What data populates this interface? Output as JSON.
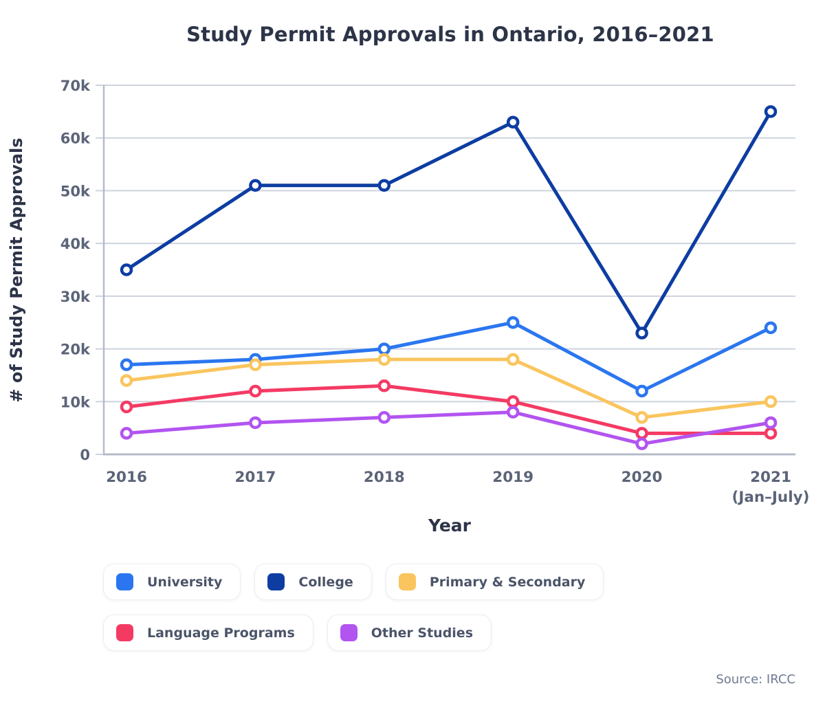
{
  "page": {
    "title": "Study Permit Approvals in Ontario, 2016–2021",
    "source": "Source: IRCC"
  },
  "chart_data": {
    "type": "line",
    "title": "Study Permit Approvals in Ontario, 2016–2021",
    "xlabel": "Year",
    "ylabel": "# of Study Permit Approvals",
    "categories": [
      "2016",
      "2017",
      "2018",
      "2019",
      "2020",
      "2021"
    ],
    "x_note": {
      "category_index": 5,
      "label": "(Jan–July)"
    },
    "ylim": [
      0,
      70000
    ],
    "ytick_step": 10000,
    "ytick_labels": [
      "0",
      "10k",
      "20k",
      "30k",
      "40k",
      "50k",
      "60k",
      "70k"
    ],
    "grid": true,
    "legend_position": "bottom",
    "marker": "open-circle",
    "series": [
      {
        "name": "University",
        "color": "#2b76f0",
        "values": [
          17000,
          18000,
          20000,
          25000,
          12000,
          24000
        ]
      },
      {
        "name": "College",
        "color": "#0d3da2",
        "values": [
          35000,
          51000,
          51000,
          63000,
          23000,
          65000
        ]
      },
      {
        "name": "Primary & Secondary",
        "color": "#fac55e",
        "values": [
          14000,
          17000,
          18000,
          18000,
          7000,
          10000
        ]
      },
      {
        "name": "Language Programs",
        "color": "#f43a63",
        "values": [
          9000,
          12000,
          13000,
          10000,
          4000,
          4000
        ]
      },
      {
        "name": "Other Studies",
        "color": "#b254f0",
        "values": [
          4000,
          6000,
          7000,
          8000,
          2000,
          6000
        ]
      }
    ]
  },
  "legend": {
    "rows": [
      [
        "University",
        "College",
        "Primary & Secondary"
      ],
      [
        "Language Programs",
        "Other Studies"
      ]
    ]
  },
  "style": {
    "grid_color": "#cdd3de",
    "axis_color": "#b4bbc9",
    "tick_label_color": "#5b6478",
    "title_color": "#2c3448",
    "legend_text_color": "#4b5468",
    "source_color": "#6e7a94"
  }
}
